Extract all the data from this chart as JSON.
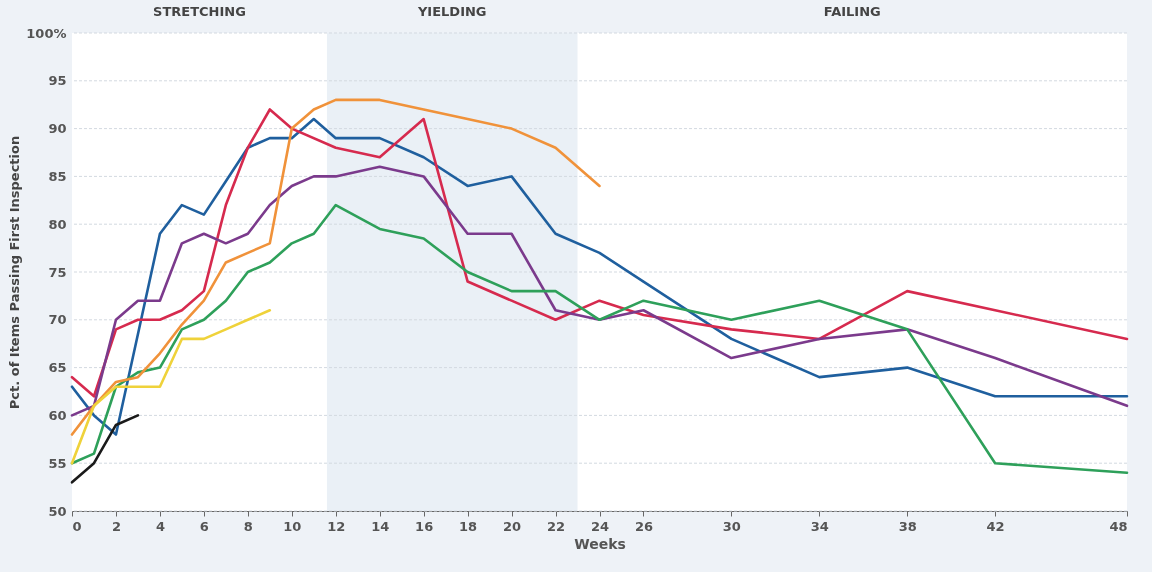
{
  "chart_data": {
    "type": "line",
    "xlabel": "Weeks",
    "ylabel": "Pct. of Items Passing First Inspection",
    "xlim": [
      0,
      48
    ],
    "xticks": [
      0,
      2,
      4,
      6,
      8,
      10,
      12,
      14,
      16,
      18,
      20,
      22,
      24,
      26,
      30,
      34,
      38,
      42,
      48
    ],
    "ylim": [
      50,
      100
    ],
    "yticks": [
      50,
      55,
      60,
      65,
      70,
      75,
      80,
      85,
      90,
      95,
      {
        "value": 100,
        "label": "100%"
      }
    ],
    "grid": "y",
    "line_style": "solid",
    "marker": "none",
    "legend": false,
    "bands": [
      {
        "axis": "x",
        "from": 11.6,
        "to": 23,
        "label": "YIELDING",
        "color": "#eaf0f6"
      }
    ],
    "annotations": [
      "STRETCHING",
      "FAILING"
    ],
    "series": [
      {
        "color": "#1f5f9e",
        "x": [
          0,
          1,
          2,
          4,
          5,
          6,
          7,
          8,
          9,
          10,
          11,
          12,
          14,
          16,
          18,
          20,
          22,
          24,
          26,
          30,
          34,
          38,
          42,
          48
        ],
        "values": [
          63,
          60,
          58,
          79,
          82,
          81,
          84.5,
          88,
          89,
          89,
          91,
          89,
          89,
          87,
          84,
          85,
          79,
          77,
          74,
          68,
          64,
          65,
          62,
          62
        ]
      },
      {
        "color": "#d62a4e",
        "x": [
          0,
          1,
          2,
          3,
          4,
          5,
          6,
          7,
          8,
          9,
          10,
          12,
          14,
          16,
          18,
          20,
          22,
          24,
          26,
          30,
          34,
          38,
          42,
          48
        ],
        "values": [
          64,
          62,
          69,
          70,
          70,
          71,
          73,
          82,
          88,
          92,
          90,
          88,
          87,
          91,
          74,
          72,
          70,
          72,
          70.5,
          69,
          68,
          73,
          71,
          68
        ]
      },
      {
        "color": "#7b3a8c",
        "x": [
          0,
          1,
          2,
          3,
          4,
          5,
          6,
          7,
          8,
          9,
          10,
          11,
          12,
          14,
          16,
          18,
          20,
          22,
          24,
          26,
          30,
          34,
          38,
          42,
          48
        ],
        "values": [
          60,
          61,
          70,
          72,
          72,
          78,
          79,
          78,
          79,
          82,
          84,
          85,
          85,
          86,
          85,
          79,
          79,
          71,
          70,
          71,
          66,
          68,
          69,
          66,
          61
        ]
      },
      {
        "color": "#2ea05a",
        "x": [
          0,
          1,
          2,
          3,
          4,
          5,
          6,
          7,
          8,
          9,
          10,
          11,
          12,
          14,
          16,
          18,
          20,
          22,
          24,
          26,
          30,
          34,
          38,
          42,
          48
        ],
        "values": [
          55,
          56,
          63,
          64.5,
          65,
          69,
          70,
          72,
          75,
          76,
          78,
          79,
          82,
          79.5,
          78.5,
          75,
          73,
          73,
          70,
          72,
          70,
          72,
          69,
          55,
          54
        ]
      },
      {
        "color": "#f0923a",
        "x": [
          0,
          1,
          2,
          3,
          4,
          5,
          6,
          7,
          8,
          9,
          10,
          11,
          12,
          14,
          16,
          18,
          20,
          22,
          24
        ],
        "values": [
          58,
          61,
          63.5,
          64,
          66.5,
          69.5,
          72,
          76,
          77,
          78,
          90,
          92,
          93,
          93,
          92,
          91,
          90,
          88,
          84
        ]
      },
      {
        "color": "#efd23a",
        "x": [
          0,
          1,
          2,
          3,
          4,
          5,
          6,
          7,
          8,
          9
        ],
        "values": [
          55,
          61,
          63,
          63,
          63,
          68,
          68,
          69,
          70,
          71
        ]
      },
      {
        "color": "#1a1a1a",
        "x": [
          0,
          1,
          2,
          3
        ],
        "values": [
          53,
          55,
          59,
          60
        ]
      }
    ]
  }
}
